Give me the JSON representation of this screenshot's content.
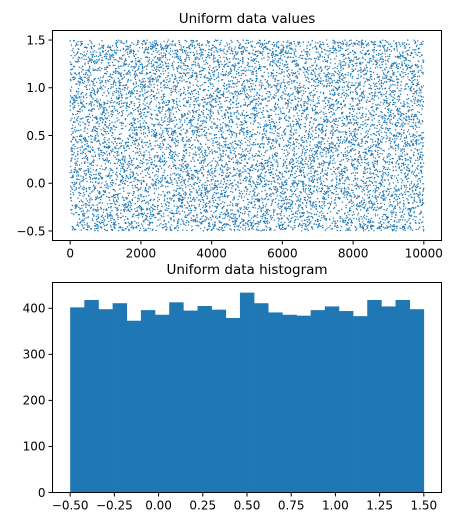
{
  "colors": {
    "series": "#1f77b4"
  },
  "chart_data": [
    {
      "type": "scatter",
      "title": "Uniform data values",
      "xlabel": "",
      "ylabel": "",
      "xlim": [
        -500,
        10500
      ],
      "ylim": [
        -0.6,
        1.6
      ],
      "xticks": [
        0,
        2000,
        4000,
        6000,
        8000,
        10000
      ],
      "xtick_labels": [
        "0",
        "2000",
        "4000",
        "6000",
        "8000",
        "10000"
      ],
      "yticks": [
        -0.5,
        0.0,
        0.5,
        1.0,
        1.5
      ],
      "ytick_labels": [
        "−0.5",
        "0.0",
        "0.5",
        "1.0",
        "1.5"
      ],
      "n_points": 10000,
      "distribution": "uniform",
      "value_range": [
        -0.5,
        1.5
      ],
      "grid": false,
      "legend": "none"
    },
    {
      "type": "bar",
      "title": "Uniform data histogram",
      "xlabel": "",
      "ylabel": "",
      "bin_edges": [
        -0.5,
        -0.42,
        -0.34,
        -0.26,
        -0.18,
        -0.1,
        -0.02,
        0.06,
        0.14,
        0.22,
        0.3,
        0.38,
        0.46,
        0.54,
        0.62,
        0.7,
        0.78,
        0.86,
        0.94,
        1.02,
        1.1,
        1.18,
        1.26,
        1.34,
        1.42,
        1.5
      ],
      "values": [
        402,
        418,
        398,
        411,
        373,
        396,
        386,
        413,
        395,
        405,
        397,
        379,
        434,
        411,
        391,
        386,
        384,
        396,
        404,
        394,
        383,
        418,
        404,
        418,
        398
      ],
      "xlim": [
        -0.6,
        1.6
      ],
      "ylim": [
        0,
        456
      ],
      "xticks": [
        -0.5,
        -0.25,
        0.0,
        0.25,
        0.5,
        0.75,
        1.0,
        1.25,
        1.5
      ],
      "xtick_labels": [
        "−0.50",
        "−0.25",
        "0.00",
        "0.25",
        "0.50",
        "0.75",
        "1.00",
        "1.25",
        "1.50"
      ],
      "yticks": [
        0,
        100,
        200,
        300,
        400
      ],
      "ytick_labels": [
        "0",
        "100",
        "200",
        "300",
        "400"
      ],
      "grid": false,
      "legend": "none"
    }
  ]
}
